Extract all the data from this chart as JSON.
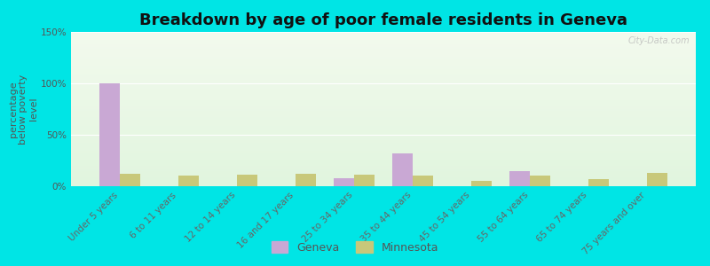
{
  "title": "Breakdown by age of poor female residents in Geneva",
  "ylabel": "percentage\nbelow poverty\nlevel",
  "categories": [
    "Under 5 years",
    "6 to 11 years",
    "12 to 14 years",
    "16 and 17 years",
    "25 to 34 years",
    "35 to 44 years",
    "45 to 54 years",
    "55 to 64 years",
    "65 to 74 years",
    "75 years and over"
  ],
  "geneva_values": [
    100,
    0,
    0,
    0,
    8,
    32,
    0,
    15,
    0,
    0
  ],
  "minnesota_values": [
    12,
    10,
    11,
    12,
    11,
    10,
    5,
    10,
    7,
    13
  ],
  "geneva_color": "#c9a8d4",
  "minnesota_color": "#c8c87a",
  "background_color": "#00e5e5",
  "ylim": [
    0,
    150
  ],
  "yticks": [
    0,
    50,
    100,
    150
  ],
  "ytick_labels": [
    "0%",
    "50%",
    "100%",
    "150%"
  ],
  "bar_width": 0.35,
  "title_fontsize": 13,
  "axis_label_fontsize": 8,
  "tick_fontsize": 7.5,
  "legend_fontsize": 9,
  "watermark": "City-Data.com"
}
